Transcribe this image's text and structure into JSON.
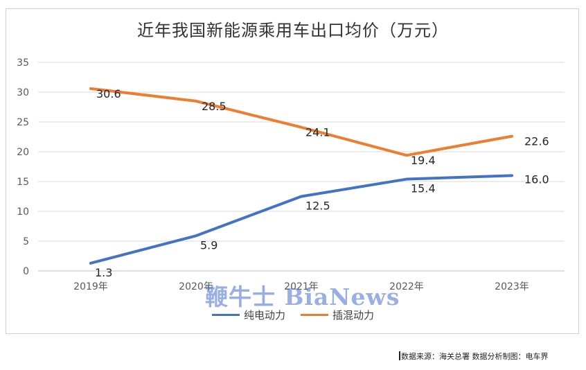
{
  "chart_data": {
    "type": "line",
    "title": "近年我国新能源乘用车出口均价（万元）",
    "categories": [
      "2019年",
      "2020年",
      "2021年",
      "2022年",
      "2023年"
    ],
    "series": [
      {
        "name": "纯电动力",
        "color": "#4472C4",
        "values": [
          1.3,
          5.9,
          12.5,
          15.4,
          16.0
        ],
        "labels": [
          "1.3",
          "5.9",
          "12.5",
          "15.4",
          "16.0"
        ]
      },
      {
        "name": "插混动力",
        "color": "#ED7D31",
        "values": [
          30.6,
          28.5,
          24.1,
          19.4,
          22.6
        ],
        "labels": [
          "30.6",
          "28.5",
          "24.1",
          "19.4",
          "22.6"
        ]
      }
    ],
    "yticks": [
      "0",
      "5",
      "10",
      "15",
      "20",
      "25",
      "30",
      "35"
    ],
    "ylim": [
      0,
      35
    ],
    "grid": true,
    "legend": "bottom"
  },
  "watermark": "鞭牛士 BiaNews",
  "source": "数据来源：海关总署   数据分析制图：电车界"
}
